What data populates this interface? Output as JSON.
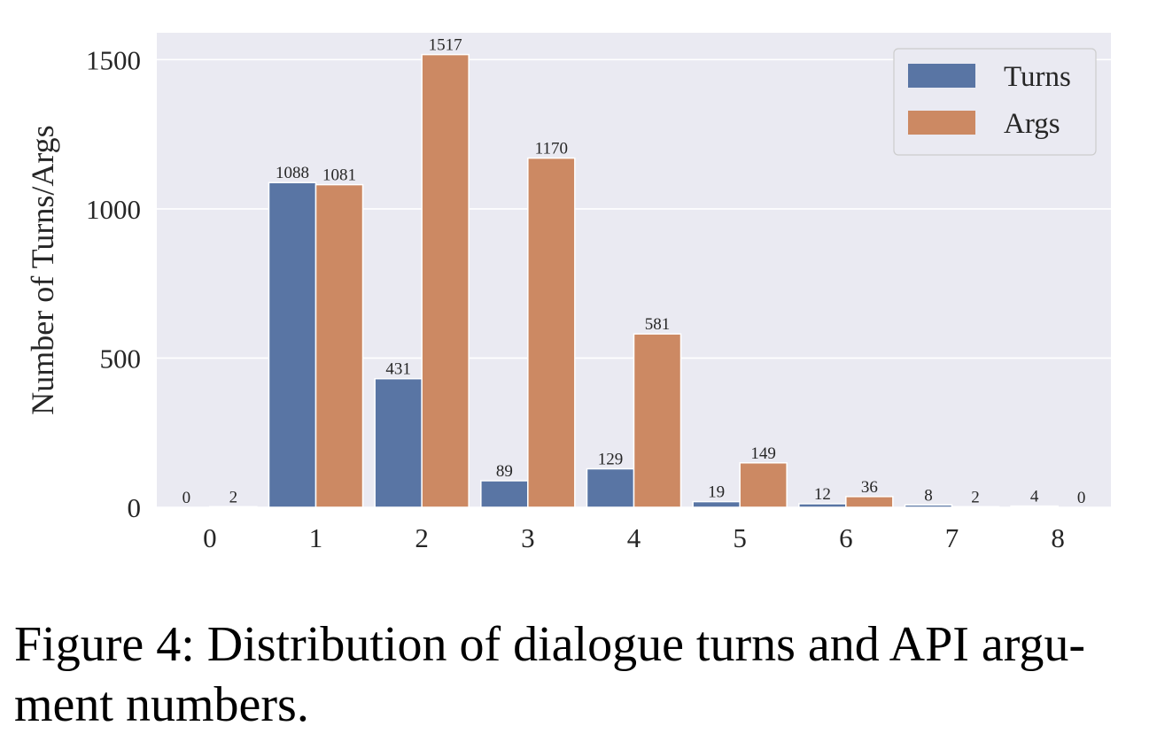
{
  "chart_data": {
    "type": "bar",
    "categories": [
      "0",
      "1",
      "2",
      "3",
      "4",
      "5",
      "6",
      "7",
      "8"
    ],
    "series": [
      {
        "name": "Turns",
        "values": [
          0,
          1088,
          431,
          89,
          129,
          19,
          12,
          8,
          4
        ]
      },
      {
        "name": "Args",
        "values": [
          2,
          1081,
          1517,
          1170,
          581,
          149,
          36,
          2,
          0
        ]
      }
    ],
    "title": "",
    "xlabel": "",
    "ylabel": "Number of Turns/Args",
    "ylim": [
      0,
      1590
    ],
    "yticks": [
      0,
      500,
      1000,
      1500
    ],
    "grid": true,
    "legend": "top-right",
    "colors": {
      "Turns": "#5975a4",
      "Args": "#cc8963",
      "background": "#eaeaf2",
      "grid": "#ffffff"
    }
  },
  "caption": "Figure 4: Distribution of dialogue turns and API argu- ment numbers."
}
